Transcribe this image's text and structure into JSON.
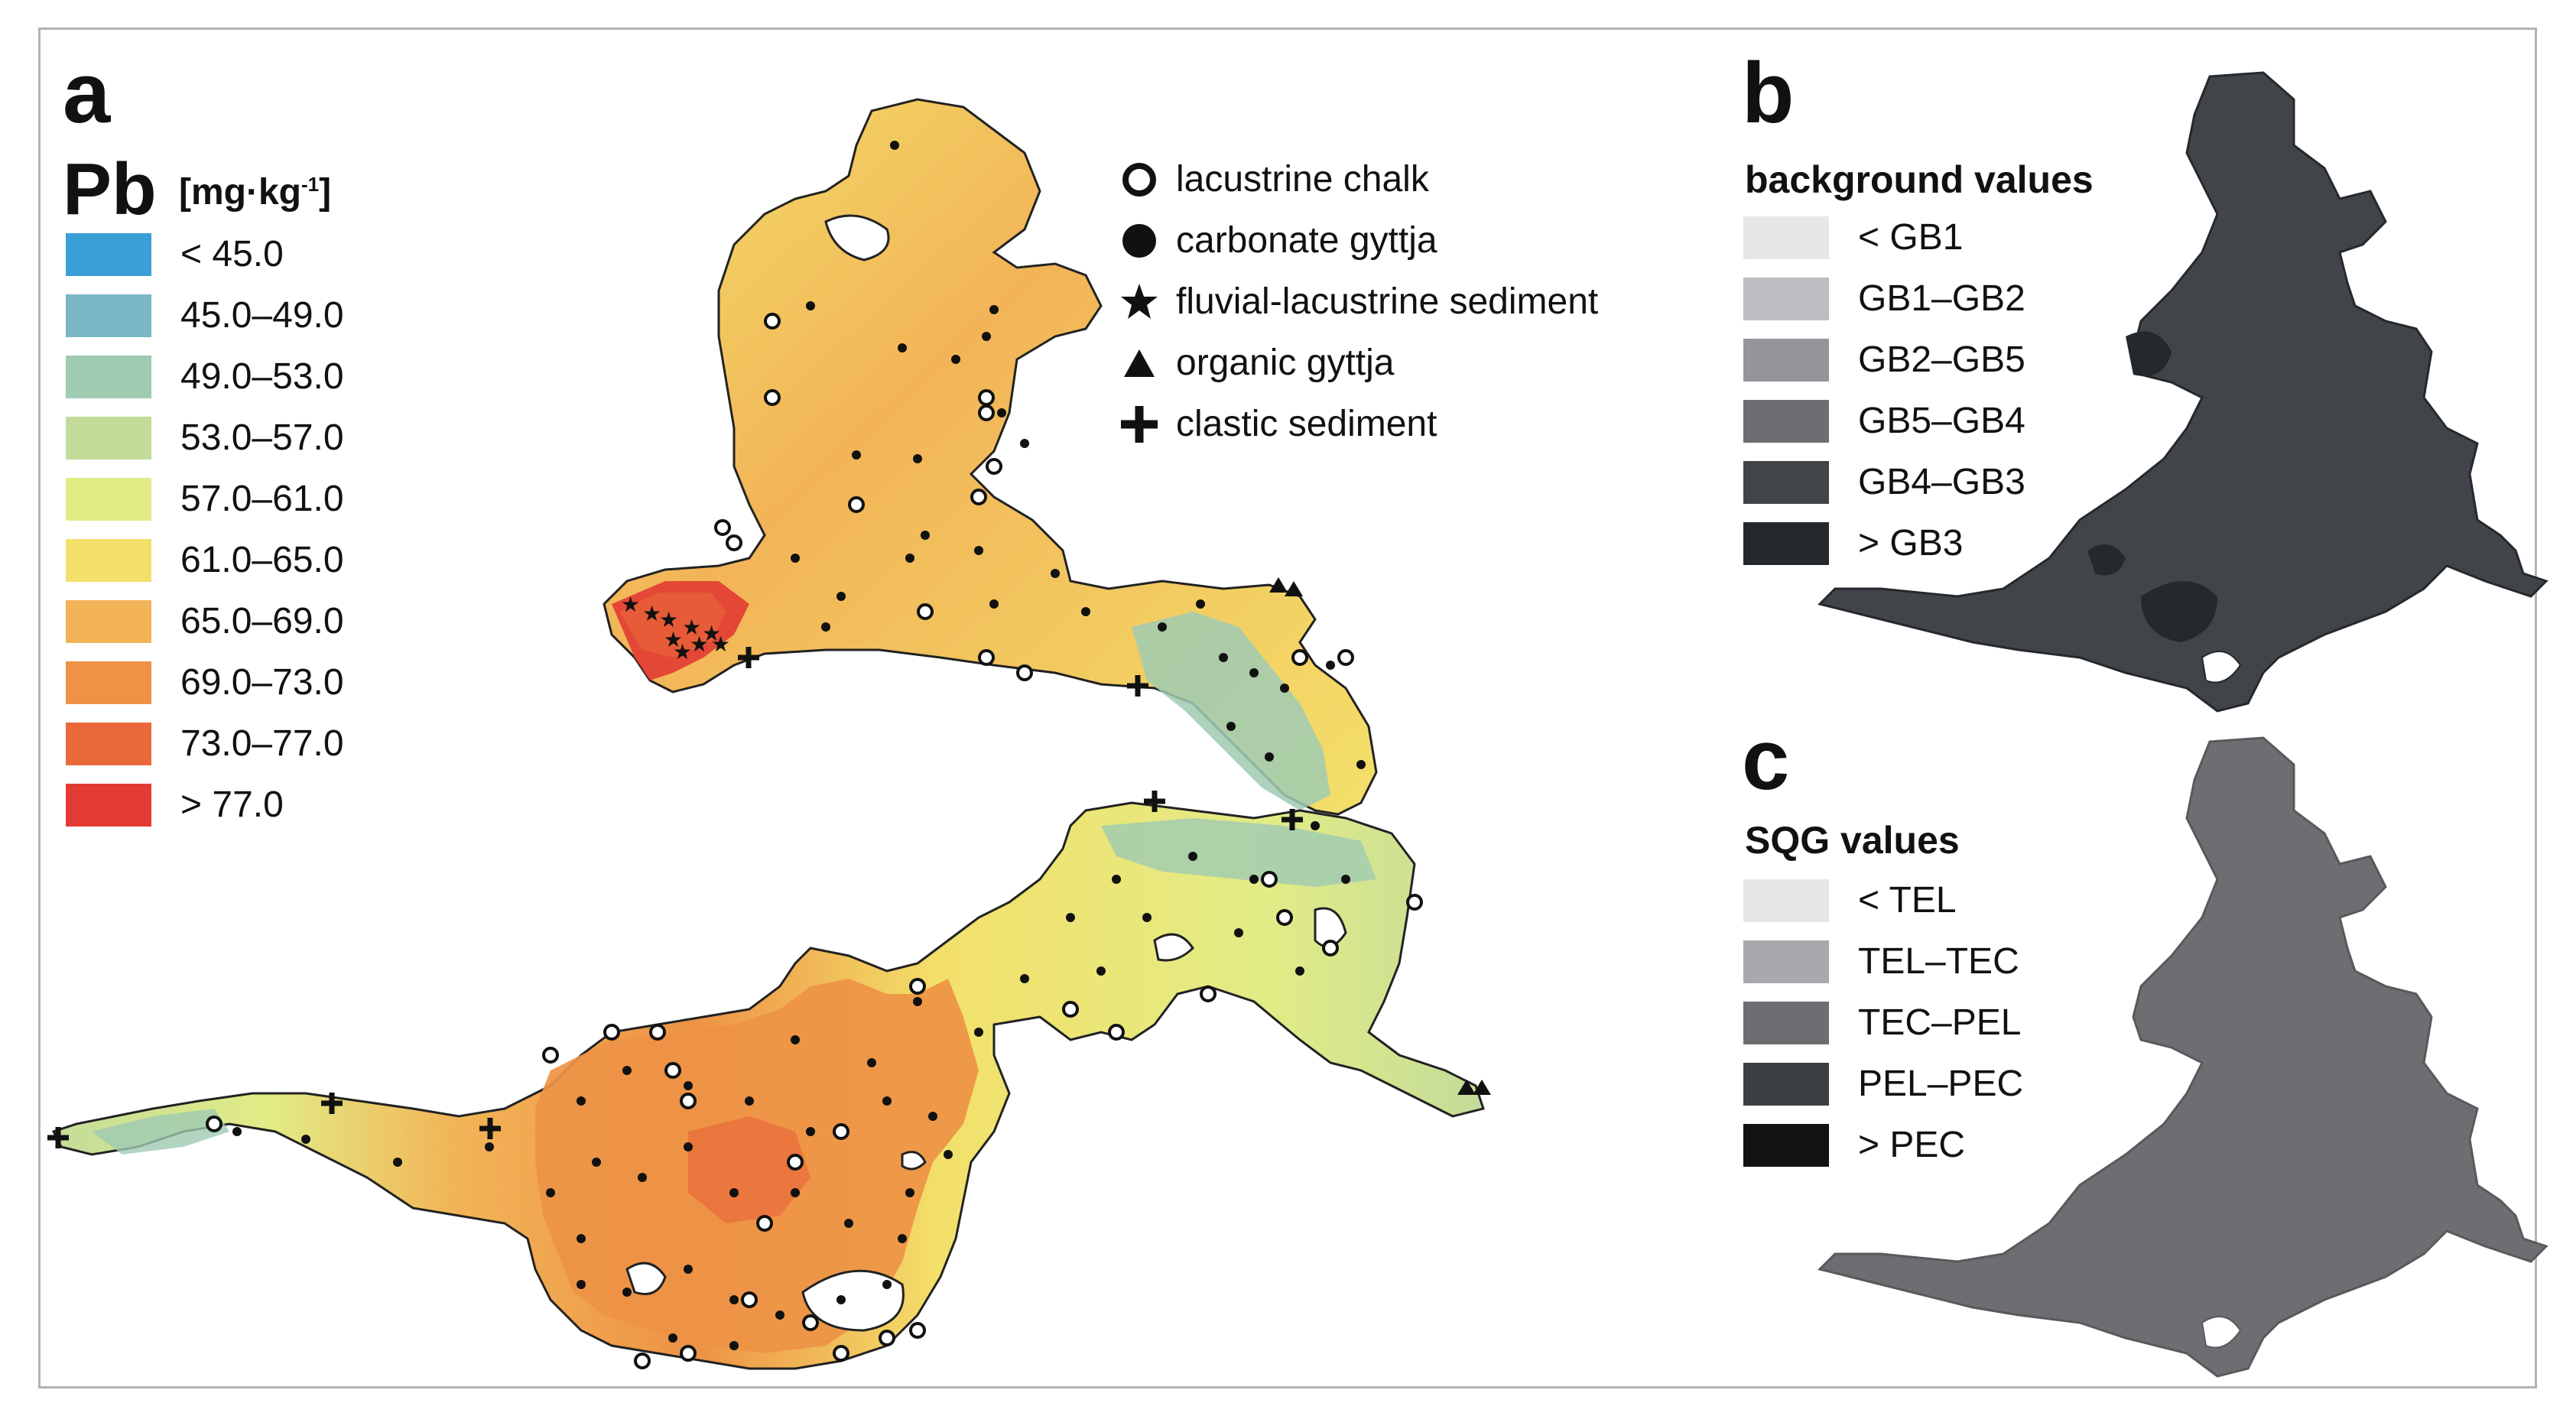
{
  "panel_a": {
    "letter": "a",
    "element": "Pb",
    "unit": "[mg·kg",
    "unit_sup": "-1",
    "unit_close": "]",
    "classes": [
      {
        "label": "< 45.0",
        "color": "#3a9fd6"
      },
      {
        "label": "45.0–49.0",
        "color": "#79b7c6"
      },
      {
        "label": "49.0–53.0",
        "color": "#9fcbb3"
      },
      {
        "label": "53.0–57.0",
        "color": "#c3dc9a"
      },
      {
        "label": "57.0–61.0",
        "color": "#e2ec86"
      },
      {
        "label": "61.0–65.0",
        "color": "#f3e06a"
      },
      {
        "label": "65.0–69.0",
        "color": "#f2b457"
      },
      {
        "label": "69.0–73.0",
        "color": "#ee9245"
      },
      {
        "label": "73.0–77.0",
        "color": "#e9693a"
      },
      {
        "label": "> 77.0",
        "color": "#e23b33"
      }
    ],
    "sediment_types": [
      {
        "label": "lacustrine chalk",
        "symbol": "open-circle-icon"
      },
      {
        "label": "carbonate gyttja",
        "symbol": "filled-circle-icon"
      },
      {
        "label": "fluvial-lacustrine sediment",
        "symbol": "star-icon"
      },
      {
        "label": "organic gyttja",
        "symbol": "triangle-icon"
      },
      {
        "label": "clastic sediment",
        "symbol": "cross-icon"
      }
    ]
  },
  "panel_b": {
    "letter": "b",
    "title": "background values",
    "classes": [
      {
        "label": "< GB1",
        "color": "#e6e7e9"
      },
      {
        "label": "GB1–GB2",
        "color": "#bdbec2"
      },
      {
        "label": "GB2–GB5",
        "color": "#939598"
      },
      {
        "label": "GB5–GB4",
        "color": "#6d6e71"
      },
      {
        "label": "GB4–GB3",
        "color": "#414549"
      },
      {
        "label": "> GB3",
        "color": "#25292d"
      }
    ]
  },
  "panel_c": {
    "letter": "c",
    "title": "SQG values",
    "classes": [
      {
        "label": "< TEL",
        "color": "#e6e7e9"
      },
      {
        "label": "TEL–TEC",
        "color": "#a7a9ac"
      },
      {
        "label": "TEC–PEL",
        "color": "#6d6e71"
      },
      {
        "label": "PEL–PEC",
        "color": "#3b3f43"
      },
      {
        "label": "> PEC",
        "color": "#111213"
      }
    ]
  }
}
